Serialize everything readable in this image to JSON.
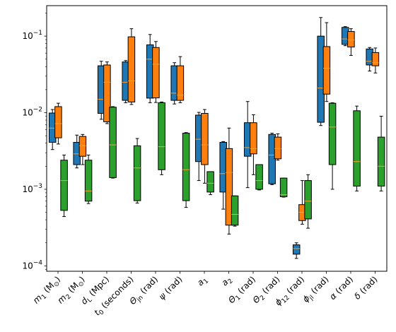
{
  "chart_data": {
    "type": "box",
    "title": "",
    "xlabel": "",
    "ylabel": "",
    "yscale": "log",
    "ylim": [
      8.5e-05,
      0.25
    ],
    "yticks": [
      {
        "value": 0.0001,
        "base": "10",
        "exp": "−4"
      },
      {
        "value": 0.001,
        "base": "10",
        "exp": "−3"
      },
      {
        "value": 0.01,
        "base": "10",
        "exp": "−2"
      },
      {
        "value": 0.1,
        "base": "10",
        "exp": "−1"
      }
    ],
    "grid": false,
    "legend": "none",
    "series_colors": [
      "#1f77b4",
      "#ff7f0e",
      "#2ca02c"
    ],
    "median_color": "#ff9f2e",
    "categories": [
      {
        "label": "m",
        "sub": "1",
        "suffix": " (M",
        "sub2": "⊙",
        "tail": ")"
      },
      {
        "label": "m",
        "sub": "2",
        "suffix": " (M",
        "sub2": "⊙",
        "tail": ")"
      },
      {
        "label": "d",
        "sub": "L",
        "suffix": " (Mpc)"
      },
      {
        "label": "t",
        "sub": "0",
        "suffix": " (seconds)"
      },
      {
        "label": "Θ",
        "sub": "jn",
        "suffix": " (rad)"
      },
      {
        "label": "ψ",
        "sub": "",
        "suffix": " (rad)"
      },
      {
        "label": "a",
        "sub": "1",
        "suffix": ""
      },
      {
        "label": "a",
        "sub": "2",
        "suffix": ""
      },
      {
        "label": "Θ",
        "sub": "1",
        "suffix": " (rad)"
      },
      {
        "label": "Θ",
        "sub": "2",
        "suffix": " (rad)"
      },
      {
        "label": "ϕ",
        "sub": "12",
        "suffix": " (rad)"
      },
      {
        "label": "ϕ",
        "sub": "jl",
        "suffix": " (rad)"
      },
      {
        "label": "α",
        "sub": "",
        "suffix": " (rad)"
      },
      {
        "label": "δ",
        "sub": "",
        "suffix": " (rad)"
      }
    ],
    "series": [
      {
        "boxes": [
          {
            "whislo": 0.0033,
            "q1": 0.0041,
            "med": 0.0063,
            "q3": 0.0099,
            "whishi": 0.011
          },
          {
            "whislo": 0.0019,
            "q1": 0.0021,
            "med": 0.0029,
            "q3": 0.0041,
            "whishi": 0.0051
          },
          {
            "whislo": 0.0082,
            "q1": 0.0098,
            "med": 0.015,
            "q3": 0.041,
            "whishi": 0.047
          },
          {
            "whislo": 0.0135,
            "q1": 0.0145,
            "med": 0.025,
            "q3": 0.046,
            "whishi": 0.048
          },
          {
            "whislo": 0.0135,
            "q1": 0.0155,
            "med": 0.05,
            "q3": 0.077,
            "whishi": 0.105
          },
          {
            "whislo": 0.013,
            "q1": 0.0145,
            "med": 0.018,
            "q3": 0.041,
            "whishi": 0.045
          },
          {
            "whislo": 0.0013,
            "q1": 0.0023,
            "med": 0.0045,
            "q3": 0.0093,
            "whishi": 0.0101
          },
          {
            "whislo": 0.00055,
            "q1": 0.00092,
            "med": 0.0016,
            "q3": 0.0041,
            "whishi": 0.0042
          },
          {
            "whislo": 0.00105,
            "q1": 0.0027,
            "med": 0.0035,
            "q3": 0.0074,
            "whishi": 0.014
          },
          {
            "whislo": 0.00115,
            "q1": 0.00118,
            "med": 0.0028,
            "q3": 0.0052,
            "whishi": 0.0054
          },
          {
            "whislo": 0.000125,
            "q1": 0.000142,
            "med": 0.000168,
            "q3": 0.000188,
            "whishi": 0.0002
          },
          {
            "whislo": 0.0068,
            "q1": 0.0075,
            "med": 0.021,
            "q3": 0.1,
            "whishi": 0.175
          },
          {
            "whislo": 0.075,
            "q1": 0.078,
            "med": 0.092,
            "q3": 0.13,
            "whishi": 0.133
          },
          {
            "whislo": 0.035,
            "q1": 0.042,
            "med": 0.047,
            "q3": 0.068,
            "whishi": 0.071
          }
        ]
      },
      {
        "boxes": [
          {
            "whislo": 0.0039,
            "q1": 0.0047,
            "med": 0.0072,
            "q3": 0.012,
            "whishi": 0.0133
          },
          {
            "whislo": 0.0021,
            "q1": 0.0027,
            "med": 0.0037,
            "q3": 0.0049,
            "whishi": 0.0052
          },
          {
            "whislo": 0.0072,
            "q1": 0.0076,
            "med": 0.025,
            "q3": 0.042,
            "whishi": 0.046
          },
          {
            "whislo": 0.0128,
            "q1": 0.0138,
            "med": 0.026,
            "q3": 0.098,
            "whishi": 0.125
          },
          {
            "whislo": 0.0136,
            "q1": 0.0156,
            "med": 0.043,
            "q3": 0.071,
            "whishi": 0.085
          },
          {
            "whislo": 0.0135,
            "q1": 0.0145,
            "med": 0.017,
            "q3": 0.041,
            "whishi": 0.054
          },
          {
            "whislo": 0.0012,
            "q1": 0.0021,
            "med": 0.0038,
            "q3": 0.0098,
            "whishi": 0.011
          },
          {
            "whislo": 0.00026,
            "q1": 0.00034,
            "med": 0.00165,
            "q3": 0.0034,
            "whishi": 0.0063
          },
          {
            "whislo": 0.00155,
            "q1": 0.0029,
            "med": 0.0034,
            "q3": 0.0074,
            "whishi": 0.0094
          },
          {
            "whislo": 0.0024,
            "q1": 0.0025,
            "med": 0.0034,
            "q3": 0.0048,
            "whishi": 0.0053
          },
          {
            "whislo": 0.00035,
            "q1": 0.00039,
            "med": 0.0005,
            "q3": 0.00063,
            "whishi": 0.0013
          },
          {
            "whislo": 0.014,
            "q1": 0.0175,
            "med": 0.038,
            "q3": 0.073,
            "whishi": 0.15
          },
          {
            "whislo": 0.056,
            "q1": 0.072,
            "med": 0.089,
            "q3": 0.115,
            "whishi": 0.125
          },
          {
            "whislo": 0.033,
            "q1": 0.041,
            "med": 0.045,
            "q3": 0.061,
            "whishi": 0.07
          }
        ]
      },
      {
        "boxes": [
          {
            "whislo": 0.00044,
            "q1": 0.00053,
            "med": 0.0013,
            "q3": 0.0024,
            "whishi": 0.0028
          },
          {
            "whislo": 0.00065,
            "q1": 0.0007,
            "med": 0.00095,
            "q3": 0.0024,
            "whishi": 0.0028
          },
          {
            "whislo": 0.0014,
            "q1": 0.00142,
            "med": 0.0038,
            "q3": 0.0118,
            "whishi": 0.012
          },
          {
            "whislo": 0.00066,
            "q1": 0.00071,
            "med": 0.0019,
            "q3": 0.0037,
            "whishi": 0.0046
          },
          {
            "whislo": 0.00155,
            "q1": 0.0018,
            "med": 0.0036,
            "q3": 0.0135,
            "whishi": 0.0138
          },
          {
            "whislo": 0.00058,
            "q1": 0.00071,
            "med": 0.0018,
            "q3": 0.0054,
            "whishi": 0.0055
          },
          {
            "whislo": 0.00085,
            "q1": 0.00092,
            "med": 0.0012,
            "q3": 0.0017,
            "whishi": 0.0017
          },
          {
            "whislo": 0.00033,
            "q1": 0.00034,
            "med": 0.00047,
            "q3": 0.00082,
            "whishi": 0.00082
          },
          {
            "whislo": 0.00098,
            "q1": 0.001,
            "med": 0.0013,
            "q3": 0.0021,
            "whishi": 0.0021
          },
          {
            "whislo": 0.00079,
            "q1": 0.0008,
            "med": 0.00085,
            "q3": 0.0014,
            "whishi": 0.0014
          },
          {
            "whislo": 0.00031,
            "q1": 0.00041,
            "med": 0.0007,
            "q3": 0.0013,
            "whishi": 0.00155
          },
          {
            "whislo": 0.001,
            "q1": 0.0021,
            "med": 0.0065,
            "q3": 0.0133,
            "whishi": 0.0135
          },
          {
            "whislo": 0.00095,
            "q1": 0.0011,
            "med": 0.0023,
            "q3": 0.0106,
            "whishi": 0.0122
          },
          {
            "whislo": 0.00095,
            "q1": 0.0011,
            "med": 0.002,
            "q3": 0.0048,
            "whishi": 0.009
          }
        ]
      }
    ]
  }
}
